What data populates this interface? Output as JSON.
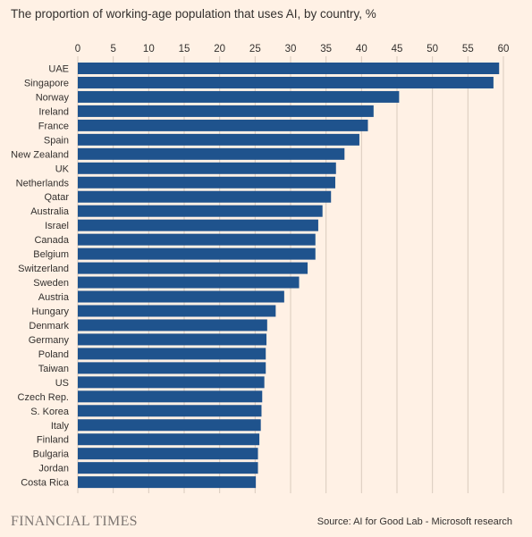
{
  "title": "The proportion of working-age population that uses AI, by country, %",
  "logo": "FINANCIAL TIMES",
  "source": "Source: AI for Good Lab - Microsoft research",
  "colors": {
    "background": "#FFF1E5",
    "bar": "#1F538D",
    "grid": "#d9cbbd",
    "text": "#33302E"
  },
  "chart_data": {
    "type": "bar",
    "orientation": "horizontal",
    "xlim": [
      0,
      60
    ],
    "xticks": [
      0,
      5,
      10,
      15,
      20,
      25,
      30,
      35,
      40,
      45,
      50,
      55,
      60
    ],
    "xaxis_position": "top",
    "grid": true,
    "categories": [
      "UAE",
      "Singapore",
      "Norway",
      "Ireland",
      "France",
      "Spain",
      "New Zealand",
      "UK",
      "Netherlands",
      "Qatar",
      "Australia",
      "Israel",
      "Canada",
      "Belgium",
      "Switzerland",
      "Sweden",
      "Austria",
      "Hungary",
      "Denmark",
      "Germany",
      "Poland",
      "Taiwan",
      "US",
      "Czech Rep.",
      "S. Korea",
      "Italy",
      "Finland",
      "Bulgaria",
      "Jordan",
      "Costa Rica"
    ],
    "values": [
      59.4,
      58.6,
      45.3,
      41.7,
      40.9,
      39.7,
      37.6,
      36.4,
      36.3,
      35.7,
      34.5,
      33.9,
      33.5,
      33.5,
      32.4,
      31.2,
      29.1,
      27.9,
      26.7,
      26.6,
      26.5,
      26.5,
      26.3,
      26.0,
      25.9,
      25.8,
      25.6,
      25.4,
      25.4,
      25.1
    ]
  }
}
